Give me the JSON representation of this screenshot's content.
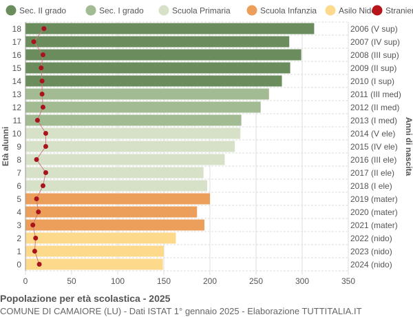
{
  "chart_data": {
    "type": "bar",
    "orientation": "horizontal",
    "title": "Popolazione per età scolastica - 2025",
    "subtitle": "COMUNE DI CAMAIORE (LU) - Dati ISTAT 1° gennaio 2025 - Elaborazione TUTTITALIA.IT",
    "ylabel": "Età alunni",
    "ylabel_right": "Anni di nascita",
    "xlim": [
      0,
      350
    ],
    "xticks": [
      0,
      50,
      100,
      150,
      200,
      250,
      300,
      350
    ],
    "grid": true,
    "legend_position": "top",
    "legend": [
      {
        "label": "Sec. II grado",
        "color": "#6b8c5c"
      },
      {
        "label": "Sec. I grado",
        "color": "#a2bb93"
      },
      {
        "label": "Scuola Primaria",
        "color": "#d6e1c8"
      },
      {
        "label": "Scuola Infanzia",
        "color": "#eb9f5a"
      },
      {
        "label": "Asilo Nido",
        "color": "#fdd98c"
      },
      {
        "label": "Stranieri",
        "color": "#b8141c"
      }
    ],
    "categories": [
      "18",
      "17",
      "16",
      "15",
      "14",
      "13",
      "12",
      "11",
      "10",
      "9",
      "8",
      "7",
      "6",
      "5",
      "4",
      "3",
      "2",
      "1",
      "0"
    ],
    "birth_years": [
      "2006 (V sup)",
      "2007 (IV sup)",
      "2008 (III sup)",
      "2009 (II sup)",
      "2010 (I sup)",
      "2011 (III med)",
      "2012 (II med)",
      "2013 (I med)",
      "2014 (V ele)",
      "2015 (IV ele)",
      "2016 (III ele)",
      "2017 (II ele)",
      "2018 (I ele)",
      "2019 (mater)",
      "2020 (mater)",
      "2021 (mater)",
      "2022 (nido)",
      "2023 (nido)",
      "2024 (nido)"
    ],
    "groups": [
      0,
      0,
      0,
      0,
      0,
      1,
      1,
      1,
      2,
      2,
      2,
      2,
      2,
      3,
      3,
      3,
      4,
      4,
      4
    ],
    "series": [
      {
        "name": "Totale",
        "values": [
          313,
          286,
          299,
          287,
          278,
          264,
          255,
          234,
          233,
          227,
          216,
          193,
          197,
          200,
          186,
          194,
          163,
          150,
          149
        ]
      },
      {
        "name": "Stranieri",
        "values": [
          20,
          9,
          19,
          17,
          18,
          18,
          19,
          13,
          22,
          22,
          12,
          22,
          19,
          12,
          14,
          8,
          11,
          10,
          15
        ]
      }
    ]
  }
}
